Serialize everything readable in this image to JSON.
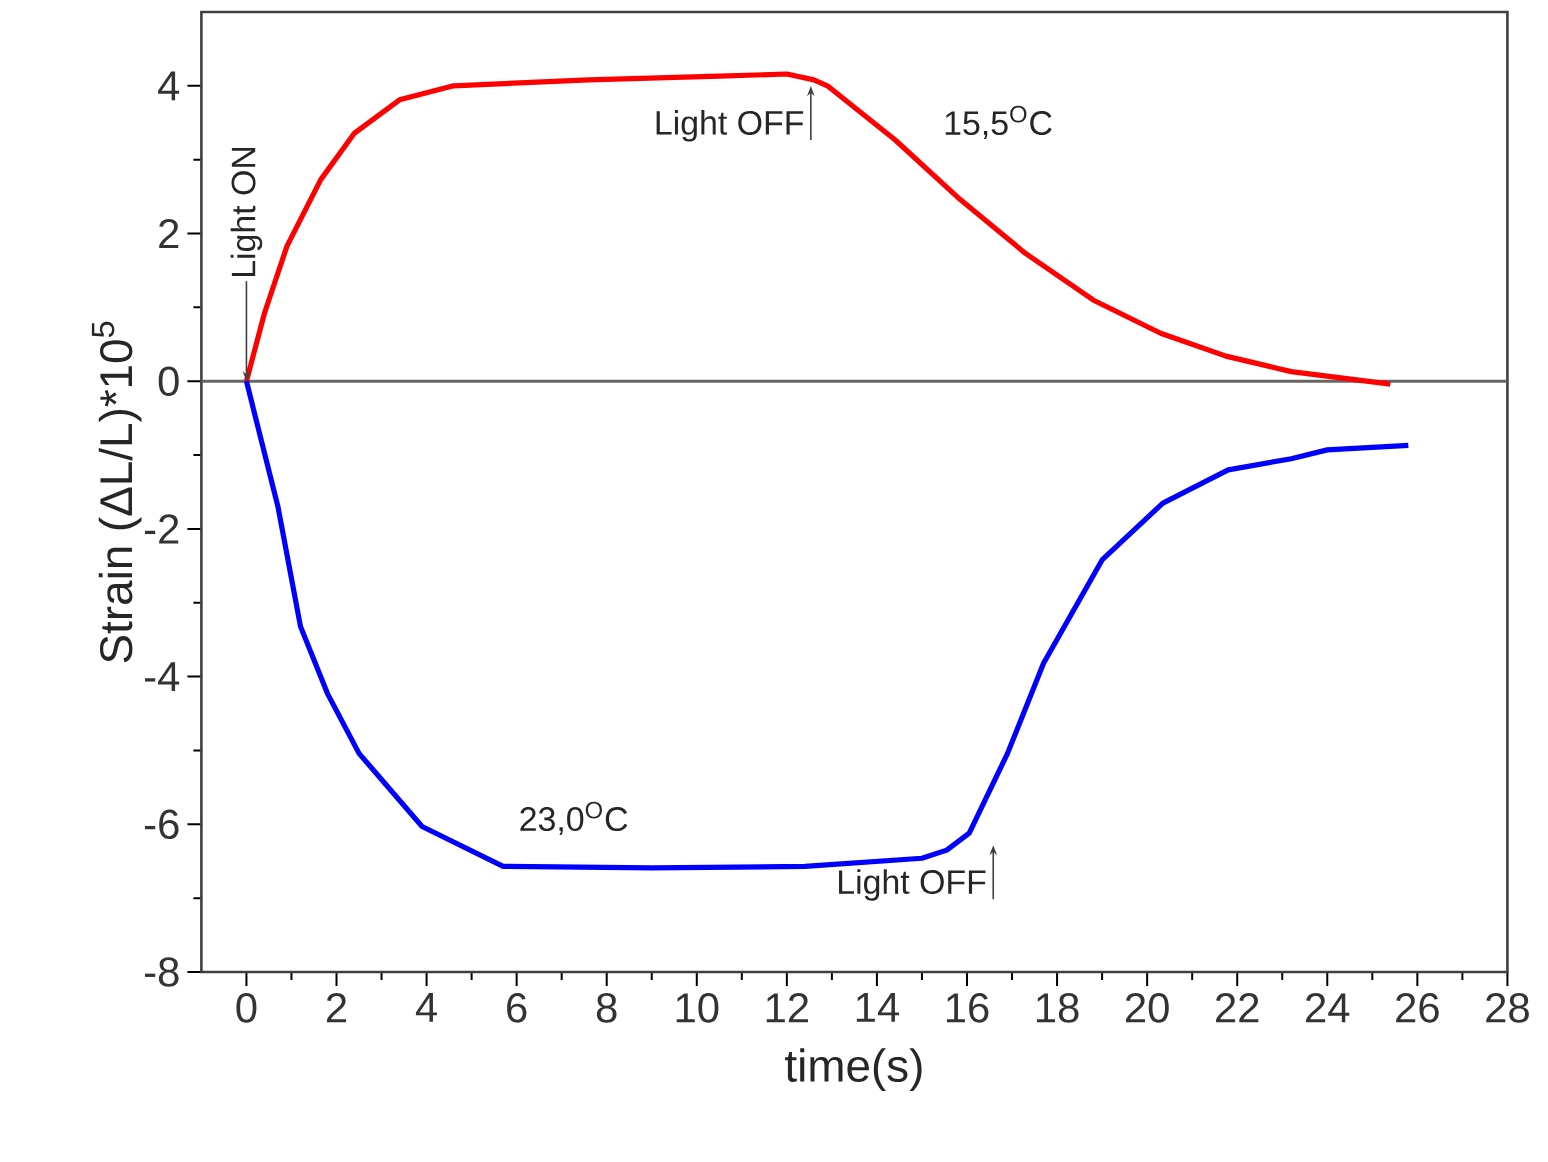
{
  "chart_data": {
    "type": "line",
    "xlabel": "time(s)",
    "ylabel": "Strain (ΔL/L)*10$^{5}$",
    "xlim": [
      -1,
      28
    ],
    "ylim": [
      -8,
      5
    ],
    "xticks": [
      0,
      2,
      4,
      6,
      8,
      10,
      12,
      14,
      16,
      18,
      20,
      22,
      24,
      26,
      28
    ],
    "yticks": [
      -8,
      -6,
      -4,
      -2,
      0,
      2,
      4
    ],
    "series": [
      {
        "color": "#ff0000",
        "x": [
          0,
          0.4,
          0.9,
          1.65,
          2.4,
          3.4,
          4.6,
          7.6,
          10.5,
          12.0,
          12.6,
          12.9,
          14.4,
          15.85,
          17.3,
          18.8,
          20.3,
          21.75,
          23.2,
          25.4
        ],
        "values": [
          0,
          0.92,
          1.83,
          2.73,
          3.36,
          3.81,
          4.0,
          4.08,
          4.13,
          4.16,
          4.08,
          4.0,
          3.27,
          2.46,
          1.73,
          1.1,
          0.65,
          0.34,
          0.13,
          -0.04
        ]
      },
      {
        "color": "#0000ff",
        "x": [
          0,
          0.7,
          1.2,
          1.8,
          2.5,
          3.9,
          5.7,
          9.0,
          12.4,
          15.0,
          15.55,
          16.05,
          16.9,
          17.7,
          19.0,
          20.35,
          21.8,
          23.2,
          24.0,
          25.8
        ],
        "values": [
          0,
          -1.7,
          -3.32,
          -4.23,
          -5.04,
          -6.03,
          -6.57,
          -6.59,
          -6.57,
          -6.46,
          -6.35,
          -6.12,
          -5.04,
          -3.82,
          -2.42,
          -1.65,
          -1.2,
          -1.05,
          -0.93,
          -0.87
        ]
      }
    ],
    "ref_lines": [
      {
        "axis": "y",
        "value": 0,
        "color": "#666666"
      }
    ],
    "annotations": [
      {
        "text": "Light ON",
        "x": 0,
        "y": 0
      },
      {
        "text": "Light OFF",
        "x": 12.0,
        "y": 4.16
      },
      "15,5$^{O}$C",
      "23,0$^{O}$C",
      {
        "text": "Light OFF",
        "x": 16.05,
        "y": -6.12
      }
    ],
    "grid": false,
    "marker": "none",
    "line_style": "solid"
  }
}
